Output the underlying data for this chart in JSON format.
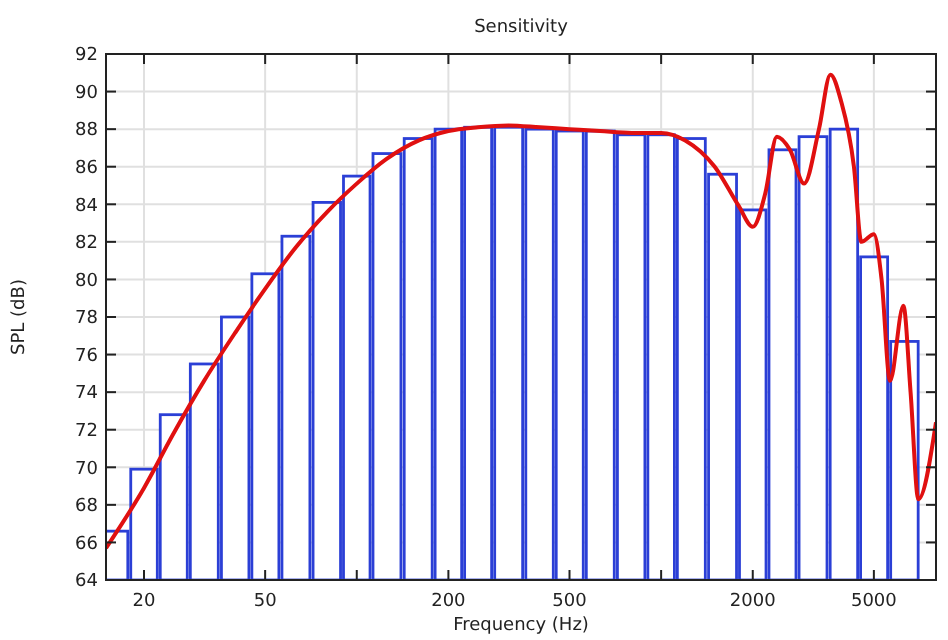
{
  "chart_data": {
    "type": "bar",
    "title": "Sensitivity",
    "xlabel": "Frequency (Hz)",
    "ylabel": "SPL (dB)",
    "log": "x",
    "grid": true,
    "xlim": [
      15,
      8000
    ],
    "xticks": [
      20,
      50,
      {
        "value": 100,
        "label": null
      },
      200,
      500,
      {
        "value": 1000,
        "label": null
      },
      2000,
      5000
    ],
    "ylim": [
      64,
      92
    ],
    "yticks": [
      64,
      66,
      68,
      70,
      72,
      74,
      76,
      78,
      80,
      82,
      84,
      86,
      88,
      90,
      92
    ],
    "series": [
      {
        "color": "#2b3fd6",
        "x": [
          16,
          20,
          25,
          31.5,
          40,
          50,
          63,
          80,
          100,
          125,
          160,
          200,
          250,
          315,
          400,
          500,
          630,
          800,
          1000,
          1250,
          1600,
          2000,
          2500,
          3150,
          4000,
          5000,
          6300
        ],
        "values": [
          66.6,
          69.9,
          72.8,
          75.5,
          78.0,
          80.3,
          82.3,
          84.1,
          85.5,
          86.7,
          87.5,
          88.0,
          88.1,
          88.1,
          88.0,
          87.9,
          87.9,
          87.7,
          87.7,
          87.5,
          85.6,
          83.7,
          86.9,
          87.6,
          88.0,
          81.2,
          76.7
        ]
      },
      {
        "type": "line",
        "color": "#e01010",
        "x": [
          15,
          20,
          25,
          31.5,
          40,
          50,
          63,
          80,
          100,
          125,
          160,
          200,
          250,
          315,
          400,
          500,
          630,
          800,
          1000,
          1200,
          1500,
          1800,
          2000,
          2200,
          2400,
          2650,
          2950,
          3300,
          3600,
          3900,
          4300,
          4550,
          5000,
          5300,
          5650,
          6250,
          6600,
          7000,
          8000
        ],
        "values": [
          65.7,
          68.9,
          71.8,
          74.6,
          77.2,
          79.5,
          81.7,
          83.6,
          85.1,
          86.4,
          87.4,
          87.9,
          88.1,
          88.2,
          88.1,
          88.0,
          87.9,
          87.8,
          87.8,
          87.4,
          86.0,
          83.9,
          82.8,
          84.6,
          87.6,
          86.9,
          85.1,
          88.0,
          90.9,
          89.5,
          86.0,
          82.0,
          82.4,
          80.0,
          74.6,
          78.6,
          74.0,
          68.3,
          72.4
        ]
      }
    ]
  }
}
